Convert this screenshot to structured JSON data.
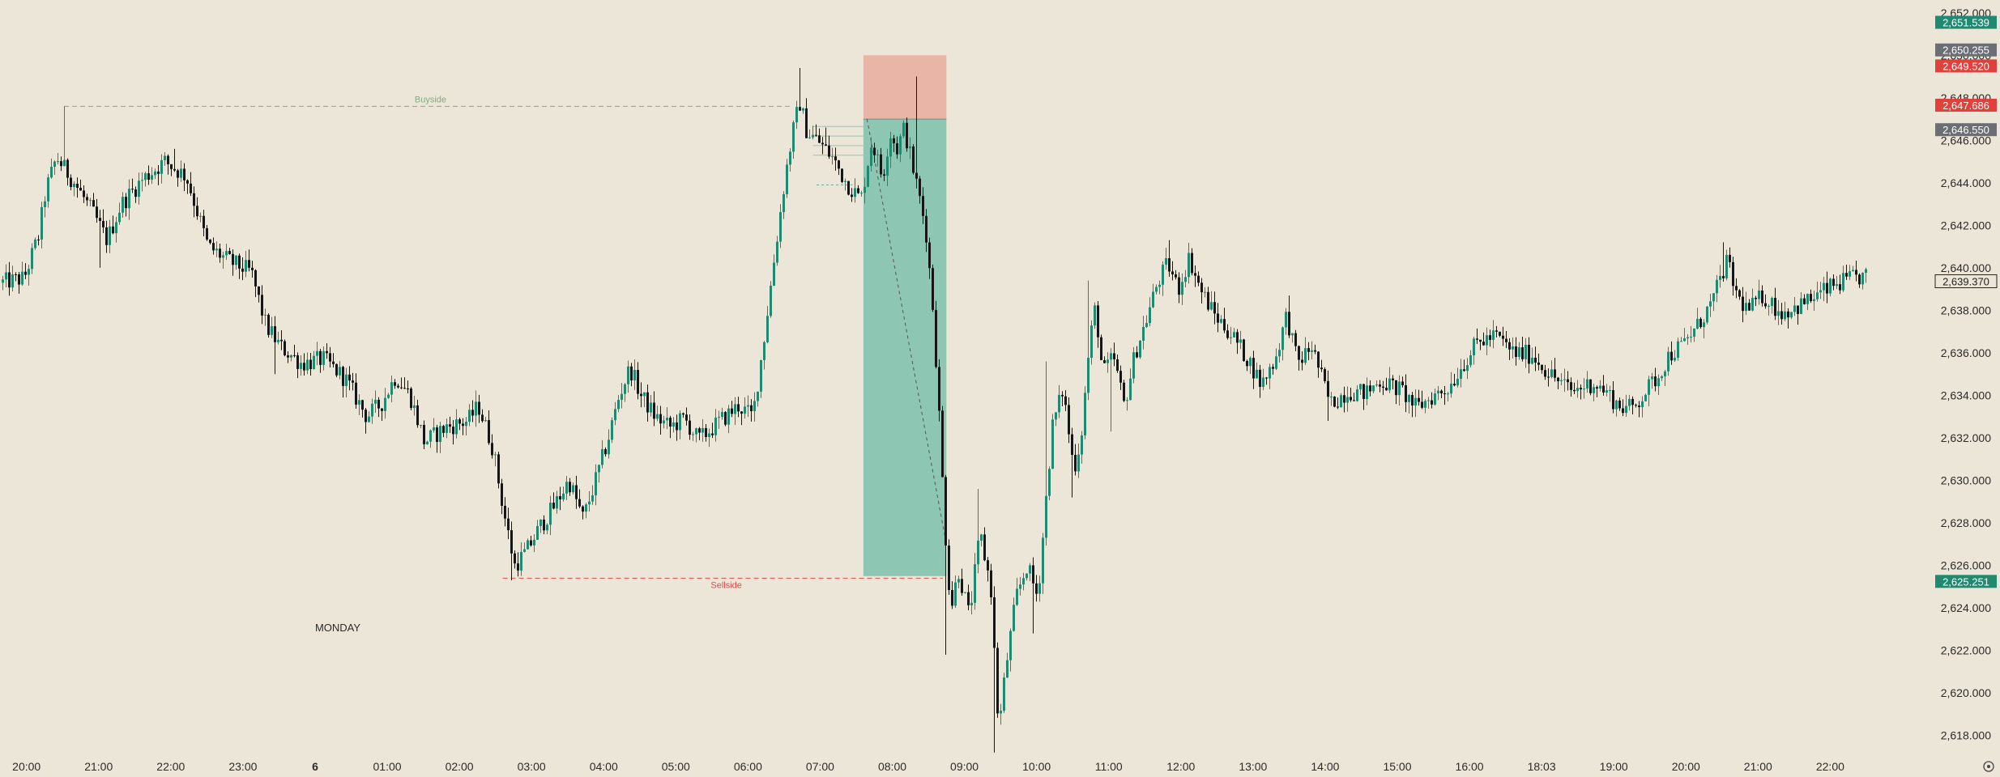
{
  "chart_data": {
    "type": "candlestick",
    "y_range": [
      2617.0,
      2652.6
    ],
    "x_range": [
      19.633,
      46.5
    ],
    "y_ticks": [
      {
        "v": 2652,
        "label": "2,652.000"
      },
      {
        "v": 2650,
        "label": "2,650.000"
      },
      {
        "v": 2648,
        "label": "2,648.000"
      },
      {
        "v": 2646,
        "label": "2,646.000"
      },
      {
        "v": 2644,
        "label": "2,644.000"
      },
      {
        "v": 2642,
        "label": "2,642.000"
      },
      {
        "v": 2640,
        "label": "2,640.000"
      },
      {
        "v": 2638,
        "label": "2,638.000"
      },
      {
        "v": 2636,
        "label": "2,636.000"
      },
      {
        "v": 2634,
        "label": "2,634.000"
      },
      {
        "v": 2632,
        "label": "2,632.000"
      },
      {
        "v": 2630,
        "label": "2,630.000"
      },
      {
        "v": 2628,
        "label": "2,628.000"
      },
      {
        "v": 2626,
        "label": "2,626.000"
      },
      {
        "v": 2624,
        "label": "2,624.000"
      },
      {
        "v": 2622,
        "label": "2,622.000"
      },
      {
        "v": 2620,
        "label": "2,620.000"
      },
      {
        "v": 2618,
        "label": "2,618.000"
      }
    ],
    "x_ticks": [
      {
        "t": 20,
        "label": "20:00",
        "bold": false
      },
      {
        "t": 21,
        "label": "21:00",
        "bold": false
      },
      {
        "t": 22,
        "label": "22:00",
        "bold": false
      },
      {
        "t": 23,
        "label": "23:00",
        "bold": false
      },
      {
        "t": 24,
        "label": "6",
        "bold": true
      },
      {
        "t": 25,
        "label": "01:00",
        "bold": false
      },
      {
        "t": 26,
        "label": "02:00",
        "bold": false
      },
      {
        "t": 27,
        "label": "03:00",
        "bold": false
      },
      {
        "t": 28,
        "label": "04:00",
        "bold": false
      },
      {
        "t": 29,
        "label": "05:00",
        "bold": false
      },
      {
        "t": 30,
        "label": "06:00",
        "bold": false
      },
      {
        "t": 31,
        "label": "07:00",
        "bold": false
      },
      {
        "t": 32,
        "label": "08:00",
        "bold": false
      },
      {
        "t": 33,
        "label": "09:00",
        "bold": false
      },
      {
        "t": 34,
        "label": "10:00",
        "bold": false
      },
      {
        "t": 35,
        "label": "11:00",
        "bold": false
      },
      {
        "t": 36,
        "label": "12:00",
        "bold": false
      },
      {
        "t": 37,
        "label": "13:00",
        "bold": false
      },
      {
        "t": 38,
        "label": "14:00",
        "bold": false
      },
      {
        "t": 39,
        "label": "15:00",
        "bold": false
      },
      {
        "t": 40,
        "label": "16:00",
        "bold": false
      },
      {
        "t": 41,
        "label": "18:03",
        "bold": false
      },
      {
        "t": 42,
        "label": "19:00",
        "bold": false
      },
      {
        "t": 43,
        "label": "20:00",
        "bold": false
      },
      {
        "t": 44,
        "label": "21:00",
        "bold": false
      },
      {
        "t": 45,
        "label": "22:00",
        "bold": false
      }
    ],
    "price_path": [
      [
        19.633,
        2639.3
      ],
      [
        19.95,
        2639.5
      ],
      [
        20.15,
        2641.5
      ],
      [
        20.25,
        2643.6
      ],
      [
        20.4,
        2645.2
      ],
      [
        20.65,
        2644.0
      ],
      [
        20.9,
        2642.6
      ],
      [
        21.1,
        2641.3
      ],
      [
        21.3,
        2643.0
      ],
      [
        21.6,
        2644.2
      ],
      [
        21.9,
        2645.0
      ],
      [
        22.2,
        2644.3
      ],
      [
        22.5,
        2641.0
      ],
      [
        22.8,
        2640.3
      ],
      [
        23.1,
        2639.8
      ],
      [
        23.3,
        2637.3
      ],
      [
        23.5,
        2636.3
      ],
      [
        23.8,
        2635.5
      ],
      [
        24.1,
        2635.7
      ],
      [
        24.4,
        2634.8
      ],
      [
        24.7,
        2633.0
      ],
      [
        24.9,
        2633.6
      ],
      [
        25.1,
        2634.9
      ],
      [
        25.3,
        2634.0
      ],
      [
        25.5,
        2631.8
      ],
      [
        25.8,
        2632.5
      ],
      [
        26.1,
        2632.8
      ],
      [
        26.25,
        2633.5
      ],
      [
        26.45,
        2631.5
      ],
      [
        26.6,
        2628.5
      ],
      [
        26.75,
        2626.0
      ],
      [
        26.9,
        2626.6
      ],
      [
        27.1,
        2627.8
      ],
      [
        27.3,
        2628.8
      ],
      [
        27.5,
        2630.0
      ],
      [
        27.7,
        2628.2
      ],
      [
        27.9,
        2630.3
      ],
      [
        28.05,
        2632.0
      ],
      [
        28.2,
        2634.0
      ],
      [
        28.35,
        2635.3
      ],
      [
        28.5,
        2634.0
      ],
      [
        28.7,
        2633.0
      ],
      [
        28.9,
        2632.5
      ],
      [
        29.1,
        2632.9
      ],
      [
        29.3,
        2631.9
      ],
      [
        29.6,
        2632.8
      ],
      [
        29.85,
        2633.5
      ],
      [
        30.05,
        2633.0
      ],
      [
        30.2,
        2636.5
      ],
      [
        30.35,
        2640.5
      ],
      [
        30.5,
        2644.3
      ],
      [
        30.6,
        2646.3
      ],
      [
        30.7,
        2647.8
      ],
      [
        30.8,
        2646.4
      ],
      [
        30.95,
        2646.0
      ],
      [
        31.15,
        2645.2
      ],
      [
        31.35,
        2644.0
      ],
      [
        31.55,
        2643.2
      ],
      [
        31.7,
        2646.0
      ],
      [
        31.85,
        2644.2
      ],
      [
        31.95,
        2646.4
      ],
      [
        32.05,
        2645.6
      ],
      [
        32.15,
        2646.6
      ],
      [
        32.25,
        2645.0
      ],
      [
        32.35,
        2643.5
      ],
      [
        32.45,
        2641.8
      ],
      [
        32.55,
        2638.0
      ],
      [
        32.62,
        2634.0
      ],
      [
        32.68,
        2630.0
      ],
      [
        32.74,
        2626.3
      ],
      [
        32.8,
        2624.0
      ],
      [
        32.9,
        2625.8
      ],
      [
        33.05,
        2623.6
      ],
      [
        33.2,
        2627.5
      ],
      [
        33.35,
        2625.0
      ],
      [
        33.42,
        2620.5
      ],
      [
        33.46,
        2618.2
      ],
      [
        33.55,
        2621.0
      ],
      [
        33.7,
        2624.5
      ],
      [
        33.85,
        2626.0
      ],
      [
        34.0,
        2624.5
      ],
      [
        34.1,
        2628.5
      ],
      [
        34.2,
        2632.5
      ],
      [
        34.35,
        2634.3
      ],
      [
        34.5,
        2630.5
      ],
      [
        34.6,
        2632.0
      ],
      [
        34.72,
        2636.5
      ],
      [
        34.8,
        2638.2
      ],
      [
        34.9,
        2635.0
      ],
      [
        35.05,
        2635.8
      ],
      [
        35.2,
        2633.5
      ],
      [
        35.35,
        2636.0
      ],
      [
        35.5,
        2637.5
      ],
      [
        35.65,
        2639.2
      ],
      [
        35.8,
        2640.2
      ],
      [
        35.95,
        2639.0
      ],
      [
        36.1,
        2640.5
      ],
      [
        36.25,
        2639.0
      ],
      [
        36.45,
        2637.8
      ],
      [
        36.7,
        2636.8
      ],
      [
        36.95,
        2635.5
      ],
      [
        37.1,
        2634.5
      ],
      [
        37.3,
        2635.8
      ],
      [
        37.45,
        2637.8
      ],
      [
        37.6,
        2635.5
      ],
      [
        37.8,
        2636.3
      ],
      [
        38.05,
        2633.6
      ],
      [
        38.3,
        2634.2
      ],
      [
        38.55,
        2634.1
      ],
      [
        38.75,
        2634.7
      ],
      [
        39.05,
        2634.2
      ],
      [
        39.25,
        2633.4
      ],
      [
        39.45,
        2633.9
      ],
      [
        39.7,
        2634.4
      ],
      [
        39.9,
        2635.5
      ],
      [
        40.1,
        2636.5
      ],
      [
        40.35,
        2636.8
      ],
      [
        40.6,
        2636.0
      ],
      [
        40.85,
        2635.9
      ],
      [
        41.1,
        2635.0
      ],
      [
        41.4,
        2634.2
      ],
      [
        41.7,
        2634.6
      ],
      [
        41.9,
        2634.1
      ],
      [
        42.05,
        2633.5
      ],
      [
        42.25,
        2633.4
      ],
      [
        42.45,
        2634.3
      ],
      [
        42.6,
        2634.9
      ],
      [
        42.75,
        2635.9
      ],
      [
        42.95,
        2636.4
      ],
      [
        43.15,
        2637.3
      ],
      [
        43.35,
        2638.4
      ],
      [
        43.55,
        2640.3
      ],
      [
        43.7,
        2638.6
      ],
      [
        43.85,
        2638.0
      ],
      [
        44.05,
        2638.7
      ],
      [
        44.3,
        2637.9
      ],
      [
        44.55,
        2638.2
      ],
      [
        44.8,
        2638.7
      ],
      [
        45.05,
        2639.2
      ],
      [
        45.3,
        2639.5
      ],
      [
        45.5,
        2639.6
      ]
    ],
    "spikes": [
      [
        20.52,
        2647.6,
        "high"
      ],
      [
        21.04,
        2640.0,
        "low"
      ],
      [
        22.05,
        2645.6,
        "high"
      ],
      [
        23.45,
        2635.0,
        "low"
      ],
      [
        26.72,
        2625.3,
        "low"
      ],
      [
        30.73,
        2649.4,
        "high"
      ],
      [
        31.1,
        2646.6,
        "high"
      ],
      [
        32.32,
        2649.0,
        "high"
      ],
      [
        32.76,
        2621.8,
        "low"
      ],
      [
        33.2,
        2629.6,
        "high"
      ],
      [
        33.44,
        2617.2,
        "low"
      ],
      [
        33.96,
        2622.8,
        "low"
      ],
      [
        34.12,
        2635.6,
        "high"
      ],
      [
        34.5,
        2629.2,
        "low"
      ],
      [
        34.73,
        2639.4,
        "high"
      ],
      [
        35.05,
        2632.3,
        "low"
      ],
      [
        35.85,
        2641.3,
        "high"
      ],
      [
        37.5,
        2638.7,
        "high"
      ],
      [
        38.04,
        2632.8,
        "low"
      ],
      [
        43.51,
        2641.2,
        "high"
      ]
    ],
    "position": {
      "t_start": 31.6,
      "t_end": 32.75,
      "entry": 2647.0,
      "stop": 2650.0,
      "target": 2625.5,
      "stop_color": "#e8b5a6",
      "target_color": "#8dc6b2"
    },
    "levels": [
      {
        "name": "Buyside",
        "price": 2647.6,
        "t_start": 20.52,
        "t_end": 30.6,
        "color": "#79b27f",
        "label_t": 25.6
      },
      {
        "name": "Sellside",
        "price": 2625.4,
        "t_start": 26.6,
        "t_end": 32.7,
        "color": "#df4b4b",
        "label_t": 29.7
      }
    ],
    "diagonal": {
      "t_start": 31.65,
      "p_start": 2647.0,
      "t_end": 32.75,
      "p_end": 2627.0
    },
    "annotation_text": "MONDAY",
    "annotation_t": 24.0,
    "annotation_p": 2622.9,
    "price_labels": [
      {
        "text": "2,651.539",
        "price": 2651.55,
        "color": "#1f8a70",
        "style": "fill"
      },
      {
        "text": "2,650.255",
        "price": 2650.25,
        "color": "#6b6e75",
        "style": "fill"
      },
      {
        "text": "2,649.520",
        "price": 2649.5,
        "color": "#e2403a",
        "style": "fill"
      },
      {
        "text": "2,647.686",
        "price": 2647.65,
        "color": "#e2403a",
        "style": "fill"
      },
      {
        "text": "2,646.550",
        "price": 2646.5,
        "color": "#6b6e75",
        "style": "fill"
      },
      {
        "text": "2,639.370",
        "price": 2639.37,
        "color": "#ebe6d7",
        "style": "outline"
      },
      {
        "text": "2,625.251",
        "price": 2625.25,
        "color": "#1f8a70",
        "style": "fill"
      }
    ],
    "colors": {
      "background": "#ebe6d7",
      "up": "#1f8a70",
      "down": "#161616",
      "axis_text": "#2b2b2b"
    },
    "grid": false
  }
}
